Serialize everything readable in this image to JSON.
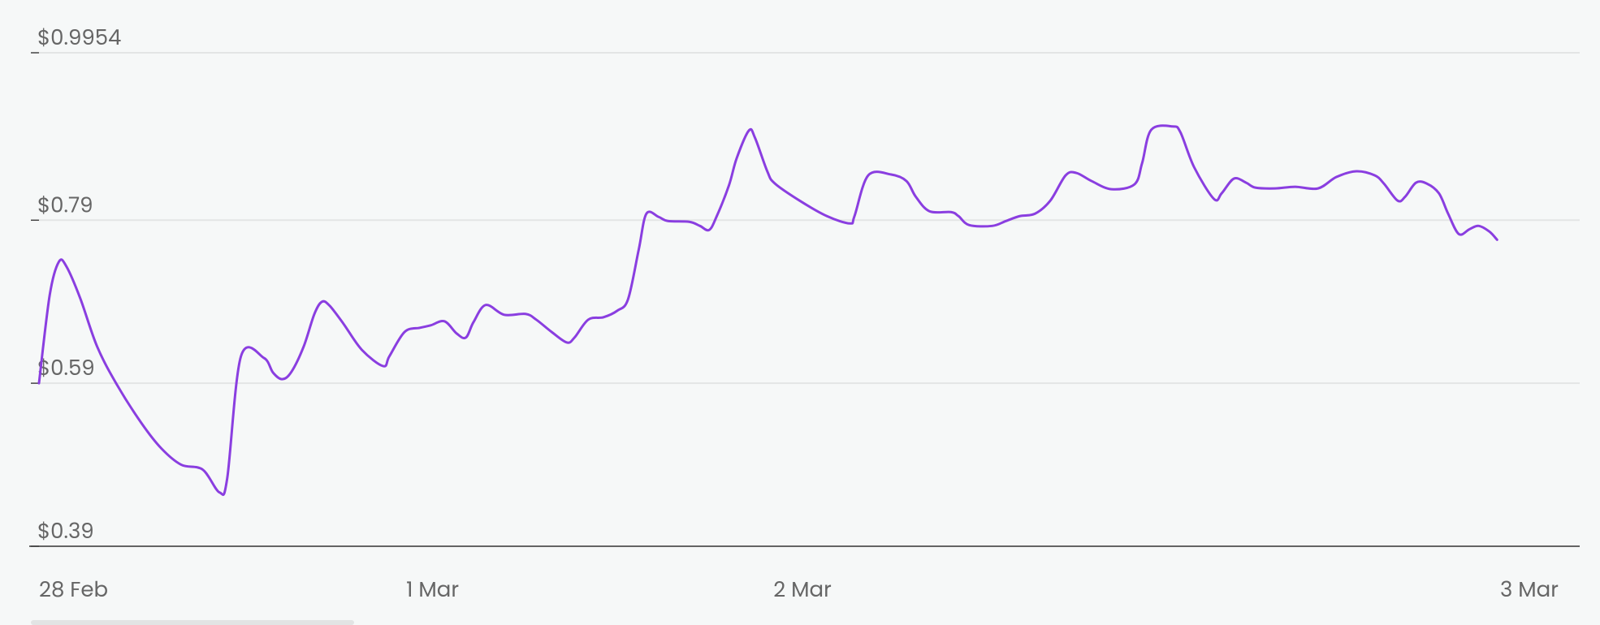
{
  "chart_data": {
    "type": "line",
    "x": [
      0.0,
      0.7,
      1.3,
      1.8,
      2.7,
      3.8,
      5.1,
      6.7,
      8.0,
      9.3,
      10.7,
      11.8,
      12.3,
      13.2,
      14.7,
      15.3,
      15.9,
      16.5,
      17.3,
      18.0,
      18.5,
      19.0,
      19.9,
      21.1,
      22.5,
      22.9,
      23.9,
      24.9,
      25.6,
      26.5,
      27.3,
      27.9,
      28.4,
      29.2,
      30.4,
      31.8,
      32.5,
      33.5,
      34.5,
      35.0,
      35.9,
      36.9,
      37.8,
      38.5,
      39.2,
      39.7,
      40.5,
      41.1,
      42.5,
      43.2,
      43.8,
      44.3,
      45.1,
      45.6,
      46.4,
      46.8,
      47.6,
      48.1,
      49.8,
      51.5,
      53.0,
      53.3,
      54.2,
      55.7,
      56.7,
      57.3,
      58.2,
      59.6,
      60.1,
      60.8,
      62.3,
      63.2,
      64.1,
      65.1,
      66.1,
      67.1,
      67.8,
      68.8,
      70.1,
      71.6,
      72.1,
      72.7,
      74.1,
      74.6,
      75.5,
      76.8,
      77.3,
      78.1,
      78.9,
      79.5,
      80.8,
      82.1,
      83.6,
      84.8,
      86.1,
      87.3,
      87.9,
      88.8,
      89.3,
      90.0,
      90.7,
      91.5,
      92.1,
      92.8,
      93.5,
      94.1,
      94.8,
      95.3
    ],
    "series": [
      {
        "color": "#8a3ee0",
        "values": [
          0.59,
          0.698,
          0.739,
          0.733,
          0.694,
          0.635,
          0.588,
          0.541,
          0.51,
          0.49,
          0.484,
          0.456,
          0.473,
          0.623,
          0.621,
          0.603,
          0.595,
          0.604,
          0.635,
          0.675,
          0.69,
          0.685,
          0.663,
          0.631,
          0.611,
          0.623,
          0.653,
          0.658,
          0.661,
          0.666,
          0.651,
          0.646,
          0.665,
          0.686,
          0.674,
          0.675,
          0.668,
          0.653,
          0.64,
          0.646,
          0.668,
          0.671,
          0.679,
          0.693,
          0.754,
          0.798,
          0.794,
          0.789,
          0.788,
          0.783,
          0.778,
          0.795,
          0.833,
          0.866,
          0.9,
          0.891,
          0.85,
          0.835,
          0.813,
          0.795,
          0.786,
          0.795,
          0.845,
          0.846,
          0.838,
          0.819,
          0.801,
          0.8,
          0.795,
          0.784,
          0.783,
          0.789,
          0.795,
          0.798,
          0.814,
          0.845,
          0.848,
          0.838,
          0.828,
          0.834,
          0.86,
          0.901,
          0.905,
          0.898,
          0.855,
          0.816,
          0.823,
          0.841,
          0.836,
          0.83,
          0.829,
          0.831,
          0.829,
          0.843,
          0.85,
          0.845,
          0.835,
          0.814,
          0.819,
          0.836,
          0.835,
          0.823,
          0.798,
          0.773,
          0.779,
          0.783,
          0.776,
          0.766
        ]
      }
    ],
    "xlim": [
      0,
      100.7
    ],
    "xticks": [
      {
        "value": 0,
        "label": "28 Feb"
      },
      {
        "value": 24,
        "label": "1 Mar"
      },
      {
        "value": 48,
        "label": "2 Mar"
      },
      {
        "value": 95.5,
        "label": "3 Mar"
      }
    ],
    "ylim": [
      0.39,
      0.9954
    ],
    "yticks": [
      {
        "value": 0.39,
        "label": "$0.39"
      },
      {
        "value": 0.59,
        "label": "$0.59"
      },
      {
        "value": 0.79,
        "label": "$0.79"
      },
      {
        "value": 0.9954,
        "label": "$0.9954"
      }
    ],
    "grid": true
  }
}
